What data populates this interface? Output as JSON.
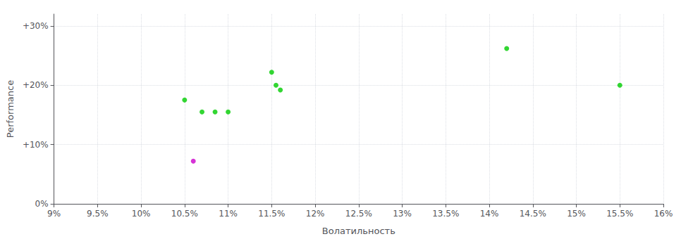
{
  "chart_data": {
    "type": "scatter",
    "xlabel": "Волатильность",
    "ylabel": "Performance",
    "xlim": [
      0.09,
      0.16
    ],
    "ylim": [
      0.0,
      0.32
    ],
    "xticks": [
      {
        "value": 0.09,
        "label": "9%"
      },
      {
        "value": 0.095,
        "label": "9.5%"
      },
      {
        "value": 0.1,
        "label": "10%"
      },
      {
        "value": 0.105,
        "label": "10.5%"
      },
      {
        "value": 0.11,
        "label": "11%"
      },
      {
        "value": 0.115,
        "label": "11.5%"
      },
      {
        "value": 0.12,
        "label": "12%"
      },
      {
        "value": 0.125,
        "label": "12.5%"
      },
      {
        "value": 0.13,
        "label": "13%"
      },
      {
        "value": 0.135,
        "label": "13.5%"
      },
      {
        "value": 0.14,
        "label": "14%"
      },
      {
        "value": 0.145,
        "label": "14.5%"
      },
      {
        "value": 0.15,
        "label": "15%"
      },
      {
        "value": 0.155,
        "label": "15.5%"
      },
      {
        "value": 0.16,
        "label": "16%"
      }
    ],
    "yticks": [
      {
        "value": 0.0,
        "label": "0%"
      },
      {
        "value": 0.1,
        "label": "+10%"
      },
      {
        "value": 0.2,
        "label": "+20%"
      },
      {
        "value": 0.3,
        "label": "+30%"
      }
    ],
    "grid": true,
    "series": [
      {
        "color": "#00cc00",
        "x": [
          0.105,
          0.107,
          0.1085,
          0.11,
          0.115,
          0.1155,
          0.116,
          0.142,
          0.155
        ],
        "values": [
          0.175,
          0.155,
          0.155,
          0.155,
          0.222,
          0.2,
          0.192,
          0.262,
          0.2
        ]
      },
      {
        "color": "#cc00cc",
        "x": [
          0.106
        ],
        "values": [
          0.072
        ]
      }
    ]
  }
}
